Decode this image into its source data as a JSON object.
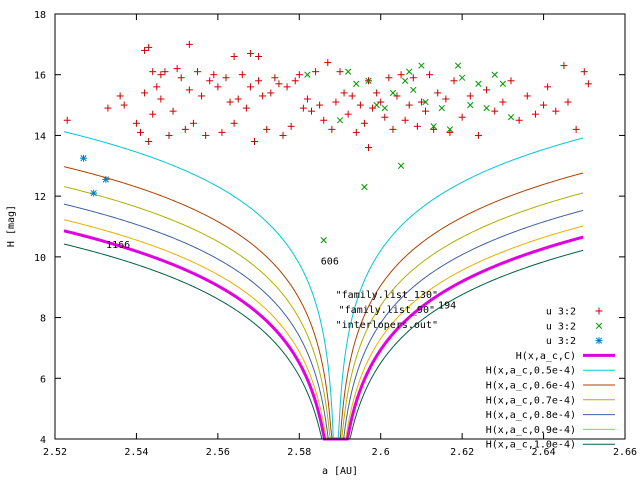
{
  "chart_data": {
    "type": "scatter",
    "xlabel": "a [AU]",
    "ylabel": "H [mag]",
    "xlim": [
      2.52,
      2.66
    ],
    "ylim": [
      4,
      18
    ],
    "x_ticks": [
      "2.52",
      "2.54",
      "2.56",
      "2.58",
      "2.6",
      "2.62",
      "2.64",
      "2.66"
    ],
    "y_ticks": [
      "4",
      "6",
      "8",
      "10",
      "12",
      "14",
      "16",
      "18"
    ],
    "grid": false,
    "legend_position": "bottom-right",
    "center_a": 2.589,
    "annotations": [
      {
        "text": "1166",
        "x": 2.5355,
        "y": 10.3
      },
      {
        "text": "606",
        "x": 2.5875,
        "y": 9.75
      },
      {
        "text": "194",
        "x": 2.6163,
        "y": 8.3
      }
    ],
    "overlay_labels": [
      {
        "text": "\"family.list_130\"",
        "x": 2.6015,
        "y": 8.65
      },
      {
        "text": "\"family.list_90\"",
        "x": 2.6015,
        "y": 8.15
      },
      {
        "text": "\"interlopers.out\"",
        "x": 2.6015,
        "y": 7.65
      }
    ],
    "series": [
      {
        "name": "u 3:2",
        "kind": "points",
        "marker": "plus",
        "color": "#cc0000",
        "points": [
          [
            2.523,
            14.5
          ],
          [
            2.533,
            14.9
          ],
          [
            2.536,
            15.3
          ],
          [
            2.537,
            15.0
          ],
          [
            2.54,
            14.4
          ],
          [
            2.541,
            14.1
          ],
          [
            2.542,
            15.4
          ],
          [
            2.542,
            16.8
          ],
          [
            2.543,
            16.9
          ],
          [
            2.543,
            13.8
          ],
          [
            2.544,
            16.1
          ],
          [
            2.544,
            14.7
          ],
          [
            2.545,
            15.6
          ],
          [
            2.546,
            16.0
          ],
          [
            2.546,
            15.2
          ],
          [
            2.547,
            16.1
          ],
          [
            2.548,
            14.0
          ],
          [
            2.549,
            14.8
          ],
          [
            2.55,
            16.2
          ],
          [
            2.551,
            15.9
          ],
          [
            2.552,
            14.2
          ],
          [
            2.553,
            17.0
          ],
          [
            2.553,
            15.5
          ],
          [
            2.554,
            14.4
          ],
          [
            2.555,
            16.1
          ],
          [
            2.556,
            15.3
          ],
          [
            2.557,
            14.0
          ],
          [
            2.558,
            15.8
          ],
          [
            2.559,
            16.0
          ],
          [
            2.56,
            15.6
          ],
          [
            2.561,
            14.1
          ],
          [
            2.562,
            15.9
          ],
          [
            2.563,
            15.1
          ],
          [
            2.564,
            16.6
          ],
          [
            2.564,
            14.4
          ],
          [
            2.565,
            15.2
          ],
          [
            2.566,
            16.0
          ],
          [
            2.567,
            14.9
          ],
          [
            2.568,
            15.6
          ],
          [
            2.568,
            16.7
          ],
          [
            2.569,
            13.8
          ],
          [
            2.57,
            15.8
          ],
          [
            2.57,
            16.6
          ],
          [
            2.571,
            15.3
          ],
          [
            2.572,
            14.2
          ],
          [
            2.573,
            15.4
          ],
          [
            2.574,
            15.9
          ],
          [
            2.575,
            15.7
          ],
          [
            2.576,
            14.0
          ],
          [
            2.577,
            15.6
          ],
          [
            2.578,
            14.3
          ],
          [
            2.579,
            15.8
          ],
          [
            2.58,
            16.0
          ],
          [
            2.581,
            14.9
          ],
          [
            2.582,
            15.2
          ],
          [
            2.583,
            14.8
          ],
          [
            2.584,
            16.1
          ],
          [
            2.585,
            15.0
          ],
          [
            2.586,
            14.5
          ],
          [
            2.587,
            16.4
          ],
          [
            2.588,
            14.2
          ],
          [
            2.589,
            15.1
          ],
          [
            2.59,
            16.1
          ],
          [
            2.591,
            15.4
          ],
          [
            2.592,
            14.7
          ],
          [
            2.593,
            15.3
          ],
          [
            2.594,
            14.1
          ],
          [
            2.595,
            15.0
          ],
          [
            2.596,
            14.4
          ],
          [
            2.597,
            13.6
          ],
          [
            2.597,
            15.8
          ],
          [
            2.598,
            14.9
          ],
          [
            2.599,
            15.4
          ],
          [
            2.6,
            15.1
          ],
          [
            2.601,
            14.6
          ],
          [
            2.602,
            15.9
          ],
          [
            2.603,
            14.2
          ],
          [
            2.604,
            15.3
          ],
          [
            2.605,
            16.0
          ],
          [
            2.606,
            14.5
          ],
          [
            2.607,
            15.0
          ],
          [
            2.608,
            15.9
          ],
          [
            2.609,
            14.3
          ],
          [
            2.61,
            15.1
          ],
          [
            2.611,
            14.8
          ],
          [
            2.612,
            16.0
          ],
          [
            2.613,
            14.2
          ],
          [
            2.614,
            15.4
          ],
          [
            2.616,
            15.2
          ],
          [
            2.617,
            14.1
          ],
          [
            2.618,
            15.8
          ],
          [
            2.62,
            14.6
          ],
          [
            2.622,
            15.3
          ],
          [
            2.624,
            14.0
          ],
          [
            2.626,
            15.5
          ],
          [
            2.628,
            14.8
          ],
          [
            2.63,
            15.1
          ],
          [
            2.632,
            15.8
          ],
          [
            2.634,
            14.5
          ],
          [
            2.636,
            15.3
          ],
          [
            2.638,
            14.7
          ],
          [
            2.64,
            15.0
          ],
          [
            2.641,
            15.6
          ],
          [
            2.643,
            14.8
          ],
          [
            2.645,
            16.3
          ],
          [
            2.646,
            15.1
          ],
          [
            2.648,
            14.2
          ],
          [
            2.65,
            16.1
          ],
          [
            2.651,
            15.7
          ]
        ]
      },
      {
        "name": "u 3:2",
        "kind": "points",
        "marker": "x",
        "color": "#009900",
        "points": [
          [
            2.582,
            16.0
          ],
          [
            2.586,
            10.55
          ],
          [
            2.59,
            14.5
          ],
          [
            2.592,
            16.1
          ],
          [
            2.594,
            15.7
          ],
          [
            2.596,
            12.3
          ],
          [
            2.597,
            15.8
          ],
          [
            2.599,
            15.0
          ],
          [
            2.601,
            14.9
          ],
          [
            2.603,
            15.4
          ],
          [
            2.605,
            13.0
          ],
          [
            2.606,
            15.8
          ],
          [
            2.607,
            16.1
          ],
          [
            2.608,
            15.5
          ],
          [
            2.61,
            16.3
          ],
          [
            2.611,
            15.1
          ],
          [
            2.613,
            14.3
          ],
          [
            2.615,
            14.9
          ],
          [
            2.617,
            14.2
          ],
          [
            2.619,
            16.3
          ],
          [
            2.62,
            15.9
          ],
          [
            2.622,
            15.0
          ],
          [
            2.624,
            15.7
          ],
          [
            2.626,
            14.9
          ],
          [
            2.628,
            16.0
          ],
          [
            2.63,
            15.7
          ],
          [
            2.632,
            14.6
          ]
        ]
      },
      {
        "name": "u 3:2",
        "kind": "points",
        "marker": "star",
        "color": "#0080cc",
        "points": [
          [
            2.527,
            13.25
          ],
          [
            2.5295,
            12.1
          ],
          [
            2.5325,
            12.55
          ]
        ]
      },
      {
        "name": "H(x,a_c,C)",
        "kind": "curve",
        "C": 0.00045,
        "color": "#e000e0",
        "width": 3
      },
      {
        "name": "H(x,a_c,0.5e-4)",
        "kind": "curve",
        "C": 0.0001,
        "color": "#00c8d8",
        "width": 1
      },
      {
        "name": "H(x,a_c,0.6e-4)",
        "kind": "curve",
        "C": 0.00017,
        "color": "#b04000",
        "width": 1
      },
      {
        "name": "H(x,a_c,0.7e-4)",
        "kind": "curve",
        "C": 0.00023,
        "color": "#b0b000",
        "width": 1
      },
      {
        "name": "H(x,a_c,0.8e-4)",
        "kind": "curve",
        "C": 0.0003,
        "color": "#4060a0",
        "width": 1
      },
      {
        "name": "H(x,a_c,0.9e-4)",
        "kind": "curve",
        "C": 0.00038,
        "color": "#e8b000",
        "width": 1
      },
      {
        "name": "H(x,a_c,1.0e-4)",
        "kind": "curve",
        "C": 0.00055,
        "color": "#006040",
        "width": 1
      }
    ]
  }
}
